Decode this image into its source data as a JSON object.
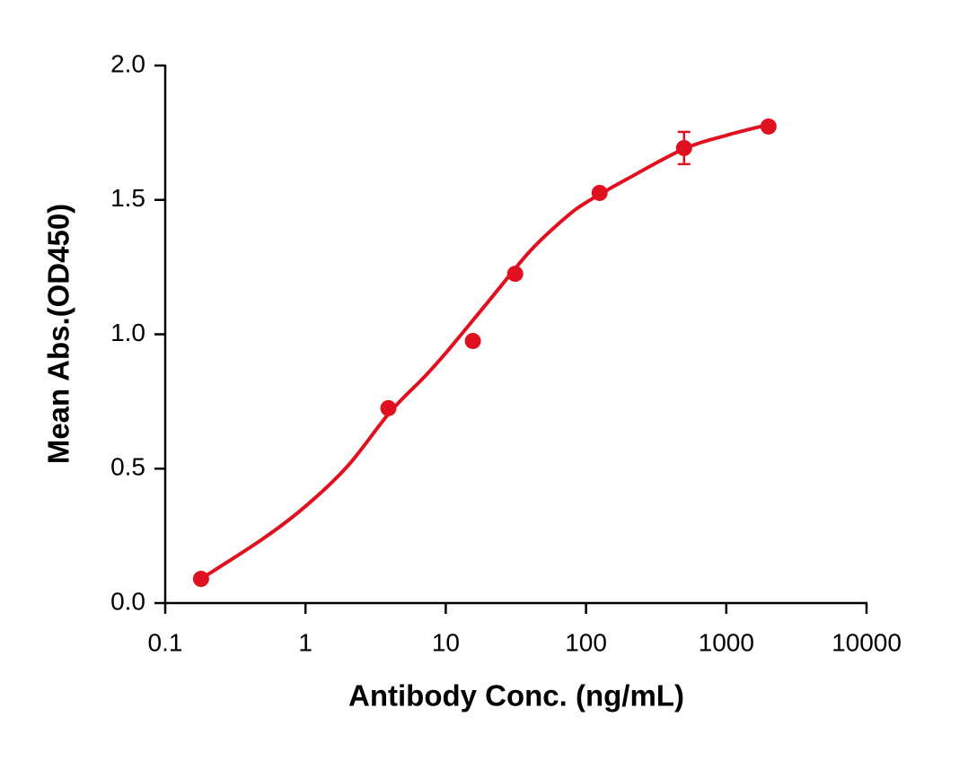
{
  "chart_data": {
    "type": "scatter",
    "x_label": "Antibody Conc. (ng/mL)",
    "y_label": "Mean Abs.(OD450)",
    "xscale": "log",
    "xlim": [
      0.1,
      10000
    ],
    "xticks": [
      0.1,
      1,
      10,
      100,
      1000,
      10000
    ],
    "ylim": [
      0,
      2
    ],
    "yticks": [
      {
        "value": 0,
        "label": "0.0"
      },
      0.5,
      {
        "value": 1,
        "label": "1.0"
      },
      1.5,
      {
        "value": 2,
        "label": "2.0"
      }
    ],
    "series": [
      {
        "color": "#e0101e",
        "style": "points",
        "x": [
          0.18,
          3.9,
          15.6,
          31.25,
          125,
          500,
          2000
        ],
        "values": [
          0.09,
          0.725,
          0.975,
          1.225,
          1.526,
          1.693,
          1.773
        ],
        "errors": [
          null,
          null,
          null,
          null,
          null,
          0.06,
          null
        ]
      },
      {
        "color": "#e0101e",
        "style": "line",
        "x": [
          0.18,
          0.5,
          1,
          2,
          4,
          7,
          10,
          20,
          40,
          70,
          100,
          200,
          500,
          1000,
          2000
        ],
        "values": [
          0.09,
          0.24,
          0.36,
          0.51,
          0.71,
          0.84,
          0.93,
          1.12,
          1.31,
          1.43,
          1.49,
          1.58,
          1.69,
          1.74,
          1.78
        ]
      }
    ]
  }
}
